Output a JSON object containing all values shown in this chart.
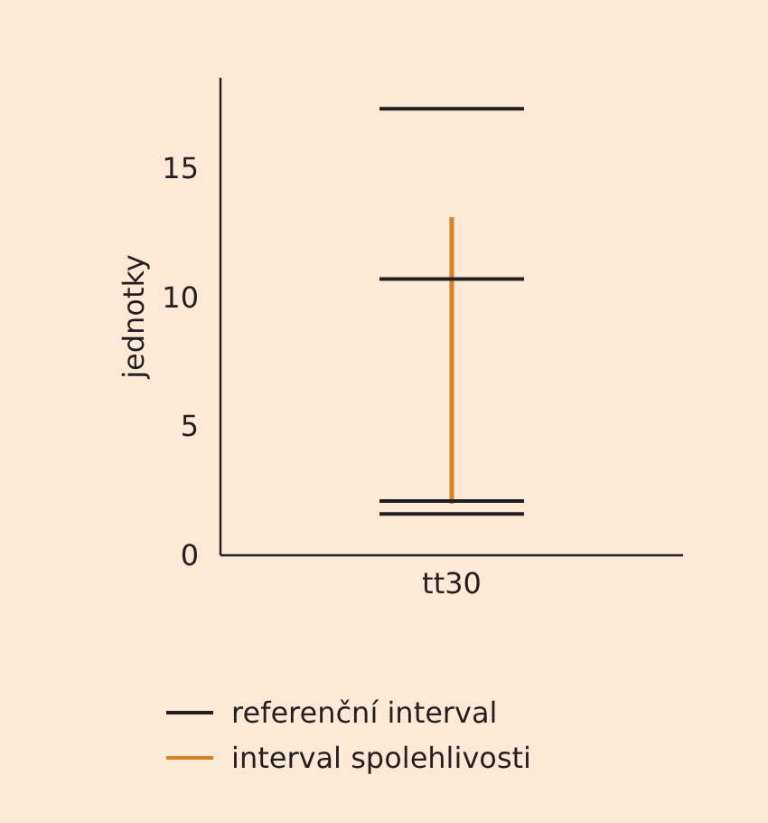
{
  "chart_data": {
    "type": "bar",
    "categories": [
      "tt30"
    ],
    "ylabel": "jednotky",
    "ylim": [
      0,
      18.5
    ],
    "yticks": [
      0,
      5,
      10,
      15
    ],
    "legend": "bottom",
    "grid": false,
    "ref_lines": [
      {
        "axis": "y",
        "value": 17.3,
        "label": "referenční interval",
        "color": "#231f20"
      },
      {
        "axis": "y",
        "value": 10.7,
        "color": "#231f20"
      },
      {
        "axis": "y",
        "value": 2.1,
        "color": "#231f20"
      },
      {
        "axis": "y",
        "value": 1.6,
        "color": "#231f20"
      }
    ],
    "series": [
      {
        "name": "interval spolehlivosti",
        "color": "#d9822b",
        "base": [
          2.0
        ],
        "values": [
          11.1
        ]
      }
    ]
  }
}
